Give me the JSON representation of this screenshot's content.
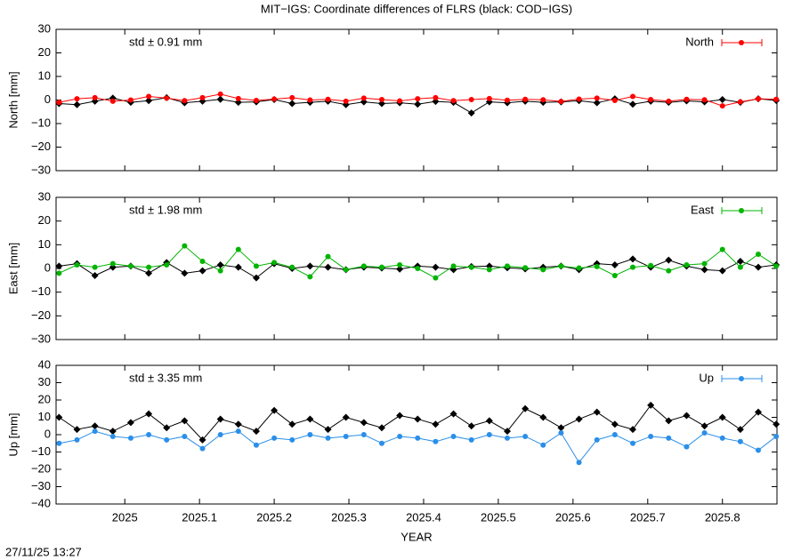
{
  "title": "MIT−IGS: Coordinate differences of FLRS (black: COD−IGS)",
  "timestamp": "27/11/25 13:27",
  "chart_data": [
    {
      "type": "line",
      "ylabel": "North [mm]",
      "annotation": "std ± 0.91 mm",
      "xlim": [
        2024.908,
        2025.873
      ],
      "xticks": [
        2025,
        2025.1,
        2025.2,
        2025.3,
        2025.4,
        2025.5,
        2025.6,
        2025.7,
        2025.8
      ],
      "ylim": [
        -30,
        30
      ],
      "yticks": [
        {
          "value": -30,
          "label": "−30"
        },
        {
          "value": -20,
          "label": "−20"
        },
        {
          "value": -10,
          "label": "−10"
        },
        0,
        10,
        20,
        30
      ],
      "x": [
        2024.912,
        2024.936,
        2024.96,
        2024.984,
        2025.008,
        2025.032,
        2025.056,
        2025.08,
        2025.104,
        2025.128,
        2025.152,
        2025.176,
        2025.2,
        2025.224,
        2025.248,
        2025.272,
        2025.296,
        2025.32,
        2025.344,
        2025.368,
        2025.392,
        2025.416,
        2025.44,
        2025.464,
        2025.488,
        2025.512,
        2025.536,
        2025.56,
        2025.584,
        2025.608,
        2025.632,
        2025.656,
        2025.68,
        2025.704,
        2025.728,
        2025.752,
        2025.776,
        2025.8,
        2025.824,
        2025.848,
        2025.872
      ],
      "series": [
        {
          "color": "#000000",
          "values": [
            -1.5,
            -2,
            -0.5,
            0.8,
            -1,
            -0.3,
            1,
            -1.2,
            -0.5,
            0.3,
            -1,
            -0.8,
            0.2,
            -1.5,
            -1,
            -0.5,
            -2,
            -0.8,
            -1.5,
            -1.2,
            -1.8,
            -0.6,
            -1,
            -5.5,
            -0.8,
            -1.2,
            -0.5,
            -1,
            -0.8,
            -0.3,
            -1.2,
            0.5,
            -1.8,
            -0.5,
            -1,
            -0.4,
            -0.8,
            0.2,
            -1,
            0.5,
            -0.2
          ]
        },
        {
          "name": "North",
          "color": "#ff0000",
          "values": [
            -1,
            0.5,
            1,
            -0.5,
            0,
            1.5,
            0.8,
            -0.3,
            1,
            2.5,
            0.6,
            -0.2,
            0.4,
            1,
            0,
            0.3,
            -0.5,
            0.8,
            0.2,
            -0.4,
            0.5,
            1,
            -0.3,
            0.2,
            0.6,
            -0.1,
            0.3,
            0.1,
            -0.6,
            0.4,
            0.8,
            -0.2,
            1.5,
            0.2,
            -0.5,
            0.3,
            0.1,
            -2.5,
            -0.8,
            0.5,
            0.3
          ]
        }
      ]
    },
    {
      "type": "line",
      "ylabel": "East [mm]",
      "annotation": "std ± 1.98 mm",
      "xlim": [
        2024.908,
        2025.873
      ],
      "xticks": [
        2025,
        2025.1,
        2025.2,
        2025.3,
        2025.4,
        2025.5,
        2025.6,
        2025.7,
        2025.8
      ],
      "ylim": [
        -30,
        30
      ],
      "yticks": [
        {
          "value": -30,
          "label": "−30"
        },
        {
          "value": -20,
          "label": "−20"
        },
        {
          "value": -10,
          "label": "−10"
        },
        0,
        10,
        20,
        30
      ],
      "x": [
        2024.912,
        2024.936,
        2024.96,
        2024.984,
        2025.008,
        2025.032,
        2025.056,
        2025.08,
        2025.104,
        2025.128,
        2025.152,
        2025.176,
        2025.2,
        2025.224,
        2025.248,
        2025.272,
        2025.296,
        2025.32,
        2025.344,
        2025.368,
        2025.392,
        2025.416,
        2025.44,
        2025.464,
        2025.488,
        2025.512,
        2025.536,
        2025.56,
        2025.584,
        2025.608,
        2025.632,
        2025.656,
        2025.68,
        2025.704,
        2025.728,
        2025.752,
        2025.776,
        2025.8,
        2025.824,
        2025.848,
        2025.872
      ],
      "series": [
        {
          "color": "#000000",
          "values": [
            1,
            2,
            -3,
            0.5,
            1,
            -2,
            2.5,
            -2,
            -1,
            1.5,
            0.5,
            -4,
            2,
            0,
            1,
            0.5,
            -0.5,
            0.5,
            0.2,
            -0.3,
            1,
            0.5,
            -0.5,
            0.8,
            1,
            0.3,
            -0.2,
            0.5,
            1,
            -0.5,
            2,
            1.5,
            4,
            0.5,
            3.5,
            1,
            -0.5,
            -1,
            3,
            0.5,
            1.5
          ]
        },
        {
          "name": "East",
          "color": "#00b400",
          "values": [
            -2,
            1.5,
            0.5,
            2,
            1,
            0.5,
            1.5,
            9.5,
            3,
            -1,
            8,
            1,
            2.5,
            0.5,
            -3.5,
            5,
            -0.5,
            1,
            0.5,
            1.5,
            0,
            -4,
            1,
            0.5,
            -0.5,
            1,
            0.3,
            -0.5,
            1,
            0.2,
            0.8,
            -3,
            0.5,
            1.2,
            -1,
            1.5,
            2,
            8,
            0.5,
            6,
            1
          ]
        }
      ]
    },
    {
      "type": "line",
      "ylabel": "Up [mm]",
      "annotation": "std ± 3.35 mm",
      "xlabel": "YEAR",
      "xlim": [
        2024.908,
        2025.873
      ],
      "xticks": [
        2025,
        2025.1,
        2025.2,
        2025.3,
        2025.4,
        2025.5,
        2025.6,
        2025.7,
        2025.8
      ],
      "ylim": [
        -40,
        40
      ],
      "yticks": [
        {
          "value": -40,
          "label": "−40"
        },
        {
          "value": -30,
          "label": "−30"
        },
        {
          "value": -20,
          "label": "−20"
        },
        {
          "value": -10,
          "label": "−10"
        },
        0,
        10,
        20,
        30,
        40
      ],
      "x": [
        2024.912,
        2024.936,
        2024.96,
        2024.984,
        2025.008,
        2025.032,
        2025.056,
        2025.08,
        2025.104,
        2025.128,
        2025.152,
        2025.176,
        2025.2,
        2025.224,
        2025.248,
        2025.272,
        2025.296,
        2025.32,
        2025.344,
        2025.368,
        2025.392,
        2025.416,
        2025.44,
        2025.464,
        2025.488,
        2025.512,
        2025.536,
        2025.56,
        2025.584,
        2025.608,
        2025.632,
        2025.656,
        2025.68,
        2025.704,
        2025.728,
        2025.752,
        2025.776,
        2025.8,
        2025.824,
        2025.848,
        2025.872
      ],
      "series": [
        {
          "color": "#000000",
          "values": [
            10,
            3,
            5,
            2,
            7,
            12,
            4,
            8,
            -3,
            9,
            6,
            2,
            14,
            6,
            9,
            3,
            10,
            7,
            4,
            11,
            9,
            6,
            12,
            5,
            8,
            2,
            15,
            10,
            4,
            9,
            13,
            6,
            3,
            17,
            8,
            11,
            5,
            10,
            3,
            13,
            6
          ]
        },
        {
          "name": "Up",
          "color": "#2b8fe8",
          "values": [
            -5,
            -3,
            2,
            -1,
            -2,
            0,
            -3,
            -1,
            -8,
            0,
            2,
            -6,
            -2,
            -3,
            0,
            -2,
            -1,
            0,
            -5,
            -1,
            -2,
            -4,
            -1,
            -3,
            0,
            -2,
            -1,
            -6,
            1,
            -16,
            -3,
            0,
            -5,
            -1,
            -2,
            -7,
            1,
            -2,
            -4,
            -9,
            -1
          ]
        }
      ]
    }
  ]
}
